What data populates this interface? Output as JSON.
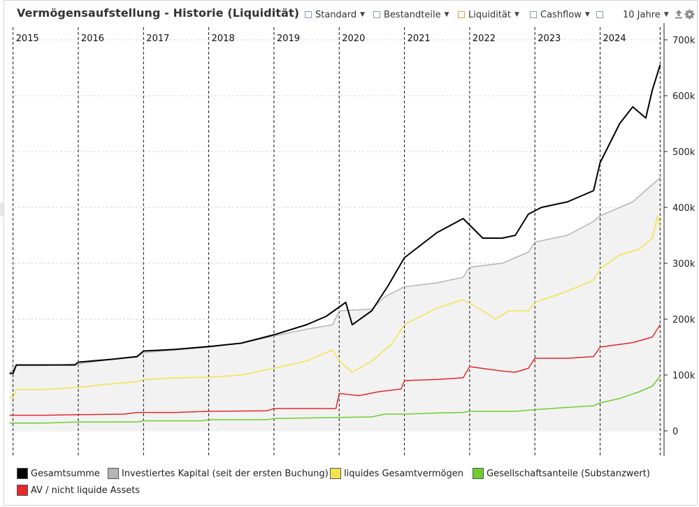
{
  "header": {
    "title": "Vermögensaufstellung - Historie (Liquidität)",
    "menus": [
      {
        "label": "Standard",
        "checkbox": "blue"
      },
      {
        "label": "Bestandteile",
        "checkbox": "blue"
      },
      {
        "label": "Liquidität",
        "checkbox": "orange"
      },
      {
        "label": "Cashflow",
        "checkbox": "blue"
      }
    ],
    "range_label": "10 Jahre",
    "icons": [
      "export-icon",
      "settings-icon"
    ]
  },
  "colors": {
    "total": "#000000",
    "invested": "#b5b5b5",
    "invested_fill": "#f2f2f2",
    "liquid": "#f2e34d",
    "nonliquid": "#e8272a",
    "shares": "#6fcd2f",
    "checkbox_blue": "#8a9bb5",
    "checkbox_orange": "#e69b2e"
  },
  "chart_data": {
    "type": "line",
    "title": "Vermögensaufstellung - Historie (Liquidität)",
    "xlabel": "",
    "ylabel": "",
    "x_range": [
      2014.95,
      2024.98
    ],
    "ylim": [
      -45000,
      730000
    ],
    "y_ticks": [
      0,
      100000,
      200000,
      300000,
      400000,
      500000,
      600000,
      700000
    ],
    "y_tick_labels": [
      "0",
      "100k",
      "200k",
      "300k",
      "400k",
      "500k",
      "600k",
      "700k"
    ],
    "year_markers": [
      2015,
      2016,
      2017,
      2018,
      2019,
      2020,
      2021,
      2022,
      2023,
      2024
    ],
    "year_labels": [
      "2015",
      "2016",
      "2017",
      "2018",
      "2019",
      "2020",
      "2021",
      "2022",
      "2023",
      "2024"
    ],
    "end_marker": 2024.92,
    "grid": "horizontal-dashed",
    "legend_position": "bottom",
    "series": [
      {
        "name": "Investiertes Kapital (seit der ersten Buchung)",
        "key": "invested",
        "style": "area",
        "x": [
          2014.95,
          2015.05,
          2015.5,
          2016.0,
          2016.5,
          2016.9,
          2017.0,
          2017.5,
          2018.0,
          2018.5,
          2019.0,
          2019.5,
          2019.9,
          2020.0,
          2020.5,
          2020.7,
          2021.0,
          2021.5,
          2021.9,
          2022.0,
          2022.5,
          2022.9,
          2023.0,
          2023.5,
          2023.9,
          2024.0,
          2024.5,
          2024.92
        ],
        "values": [
          103000,
          117000,
          117000,
          120000,
          128000,
          132000,
          140000,
          145000,
          150000,
          157000,
          170000,
          182000,
          190000,
          215000,
          218000,
          240000,
          258000,
          265000,
          275000,
          293000,
          300000,
          320000,
          338000,
          350000,
          375000,
          385000,
          410000,
          453000
        ]
      },
      {
        "name": "Gesamtsumme",
        "key": "total",
        "style": "line",
        "x": [
          2014.95,
          2015.0,
          2015.05,
          2015.5,
          2015.95,
          2016.0,
          2016.5,
          2016.9,
          2017.0,
          2017.5,
          2018.0,
          2018.5,
          2019.0,
          2019.5,
          2019.8,
          2020.1,
          2020.2,
          2020.5,
          2020.75,
          2021.0,
          2021.5,
          2021.9,
          2022.2,
          2022.5,
          2022.7,
          2022.9,
          2023.1,
          2023.5,
          2023.9,
          2024.0,
          2024.3,
          2024.5,
          2024.7,
          2024.8,
          2024.92
        ],
        "values": [
          103000,
          103000,
          118000,
          118000,
          118000,
          123000,
          128000,
          133000,
          143000,
          146000,
          151000,
          157000,
          172000,
          190000,
          205000,
          230000,
          190000,
          215000,
          260000,
          310000,
          355000,
          380000,
          345000,
          345000,
          350000,
          388000,
          400000,
          410000,
          430000,
          480000,
          550000,
          580000,
          560000,
          610000,
          655000
        ]
      },
      {
        "name": "liquides Gesamtvermögen",
        "key": "liquid",
        "style": "line",
        "x": [
          2014.95,
          2015.0,
          2015.05,
          2015.5,
          2016.0,
          2016.5,
          2016.9,
          2017.0,
          2017.5,
          2018.0,
          2018.5,
          2019.0,
          2019.5,
          2019.9,
          2020.0,
          2020.2,
          2020.5,
          2020.8,
          2021.0,
          2021.5,
          2021.9,
          2022.2,
          2022.4,
          2022.6,
          2022.9,
          2023.0,
          2023.5,
          2023.9,
          2024.0,
          2024.3,
          2024.6,
          2024.8,
          2024.88,
          2024.92
        ],
        "values": [
          60000,
          60000,
          74000,
          74000,
          78000,
          84000,
          88000,
          92000,
          95000,
          96000,
          100000,
          112000,
          125000,
          145000,
          125000,
          105000,
          125000,
          155000,
          190000,
          220000,
          235000,
          215000,
          200000,
          215000,
          215000,
          230000,
          250000,
          270000,
          290000,
          315000,
          325000,
          345000,
          385000,
          365000
        ]
      },
      {
        "name": "AV / nicht liquide Assets",
        "key": "nonliquid",
        "style": "line",
        "x": [
          2014.95,
          2015.5,
          2016.0,
          2016.7,
          2016.9,
          2017.5,
          2018.0,
          2018.9,
          2019.0,
          2019.95,
          2020.0,
          2020.3,
          2020.6,
          2020.95,
          2021.0,
          2021.5,
          2021.9,
          2022.0,
          2022.5,
          2022.7,
          2022.9,
          2023.0,
          2023.5,
          2023.9,
          2024.0,
          2024.5,
          2024.8,
          2024.92
        ],
        "values": [
          28000,
          28000,
          29000,
          30000,
          33000,
          33000,
          35000,
          36000,
          40000,
          40000,
          67000,
          63000,
          70000,
          75000,
          90000,
          92000,
          95000,
          115000,
          107000,
          105000,
          112000,
          130000,
          130000,
          133000,
          150000,
          158000,
          168000,
          190000
        ]
      },
      {
        "name": "Gesellschaftsanteile (Substanzwert)",
        "key": "shares",
        "style": "line",
        "x": [
          2014.95,
          2015.5,
          2016.0,
          2016.9,
          2017.0,
          2017.9,
          2018.0,
          2018.9,
          2019.0,
          2020.0,
          2020.5,
          2020.7,
          2021.0,
          2021.5,
          2021.9,
          2022.0,
          2022.5,
          2022.7,
          2023.0,
          2023.5,
          2023.9,
          2024.0,
          2024.3,
          2024.6,
          2024.8,
          2024.92
        ],
        "values": [
          14000,
          14000,
          16000,
          16000,
          18000,
          18000,
          20000,
          20000,
          22000,
          24000,
          25000,
          30000,
          30000,
          32000,
          33000,
          35000,
          35000,
          35000,
          38000,
          42000,
          45000,
          50000,
          58000,
          70000,
          80000,
          98000
        ]
      }
    ]
  },
  "legend": {
    "items": [
      {
        "key": "total",
        "label": "Gesamtsumme"
      },
      {
        "key": "invested",
        "label": "Investiertes Kapital (seit der ersten Buchung)"
      },
      {
        "key": "liquid",
        "label": "liquides Gesamtvermögen"
      },
      {
        "key": "shares",
        "label": "Gesellschaftsanteile (Substanzwert)"
      },
      {
        "key": "nonliquid",
        "label": "AV / nicht liquide Assets"
      }
    ]
  }
}
